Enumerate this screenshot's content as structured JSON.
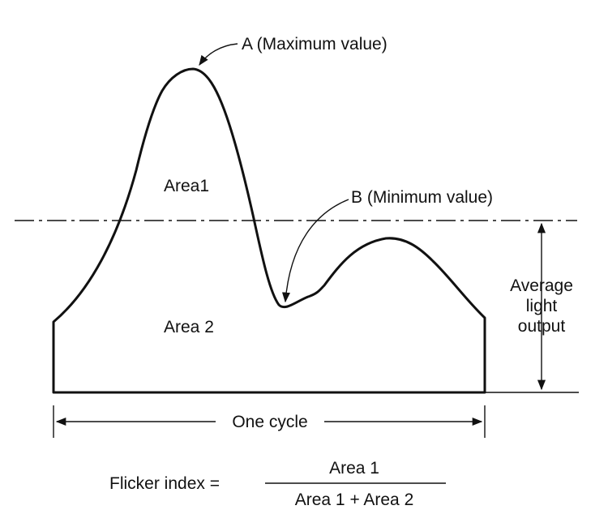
{
  "labels": {
    "max_point": "A (Maximum value)",
    "min_point": "B (Minimum value)",
    "area_1": "Area1",
    "area_2": "Area 2",
    "average_line_1": "Average",
    "average_line_2": "light",
    "average_line_3": "output",
    "one_cycle": "One cycle"
  },
  "formula": {
    "lhs": "Flicker index =",
    "numerator": "Area 1",
    "denominator": "Area 1 + Area 2"
  },
  "colors": {
    "ink": "#111111",
    "background": "#ffffff"
  }
}
